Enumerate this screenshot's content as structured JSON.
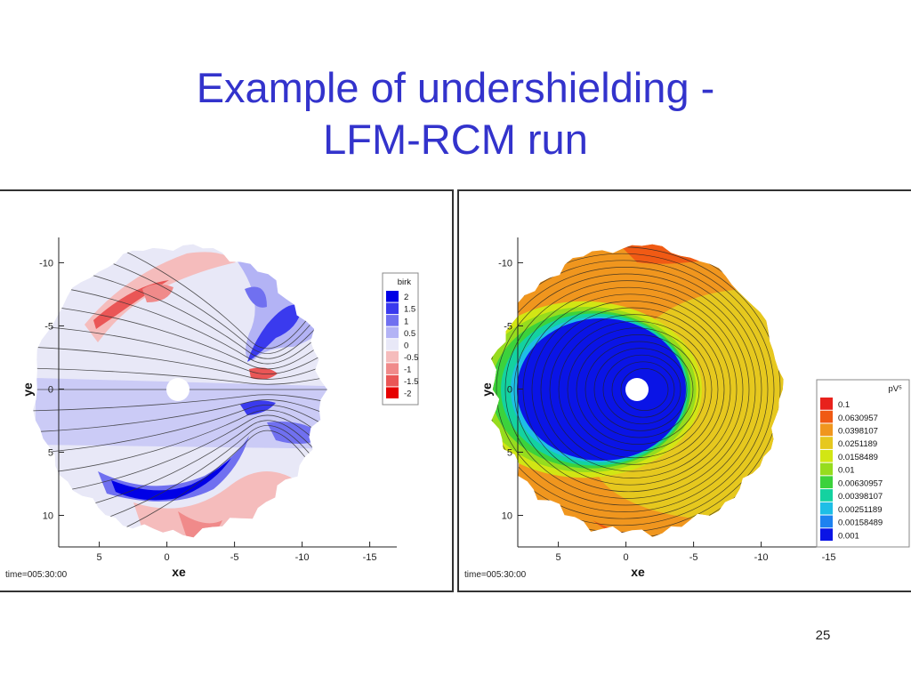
{
  "slide": {
    "title_line1": "Example of undershielding -",
    "title_line2": "LFM-RCM run",
    "page_number": "25"
  },
  "chart_data": [
    {
      "type": "heatmap",
      "panel": "left",
      "xlabel": "xe",
      "ylabel": "ye",
      "x_ticks": [
        "5",
        "0",
        "-5",
        "-10",
        "-15"
      ],
      "x_tick_values": [
        5,
        0,
        -5,
        -10,
        -15
      ],
      "y_ticks": [
        "-10",
        "-5",
        "0",
        "5",
        "10"
      ],
      "y_tick_values": [
        -10,
        -5,
        0,
        5,
        10
      ],
      "xlim": [
        8,
        -17
      ],
      "ylim": [
        -12,
        12.5
      ],
      "legend_title": "birk",
      "legend_position": "right",
      "legend_levels": [
        "2",
        "1.5",
        "1",
        "0.5",
        "0",
        "-0.5",
        "-1",
        "-1.5",
        "-2"
      ],
      "legend_colors": [
        "#0000e6",
        "#3a3aee",
        "#7070f0",
        "#b3b3f5",
        "#e8e8f7",
        "#f5bcbc",
        "#f08a8a",
        "#ea5656",
        "#e60000"
      ],
      "annotation": "time=005:30:00"
    },
    {
      "type": "heatmap",
      "panel": "right",
      "xlabel": "xe",
      "ylabel": "ye",
      "x_ticks": [
        "5",
        "0",
        "-5",
        "-10",
        "-15"
      ],
      "x_tick_values": [
        5,
        0,
        -5,
        -10,
        -15
      ],
      "y_ticks": [
        "-10",
        "-5",
        "0",
        "5",
        "10"
      ],
      "y_tick_values": [
        -10,
        -5,
        0,
        5,
        10
      ],
      "xlim": [
        8,
        -17
      ],
      "ylim": [
        -12,
        12.5
      ],
      "legend_title": "pV⁵",
      "legend_position": "right",
      "legend_levels": [
        "0.1",
        "0.0630957",
        "0.0398107",
        "0.0251189",
        "0.0158489",
        "0.01",
        "0.00630957",
        "0.00398107",
        "0.00251189",
        "0.00158489",
        "0.001"
      ],
      "legend_colors": [
        "#e8221c",
        "#f05a14",
        "#f0961e",
        "#e6c81e",
        "#d2e614",
        "#96dc1e",
        "#3cd23c",
        "#14d2a0",
        "#1ebee6",
        "#1e82f0",
        "#0a14e6"
      ],
      "annotation": "time=005:30:00"
    }
  ]
}
